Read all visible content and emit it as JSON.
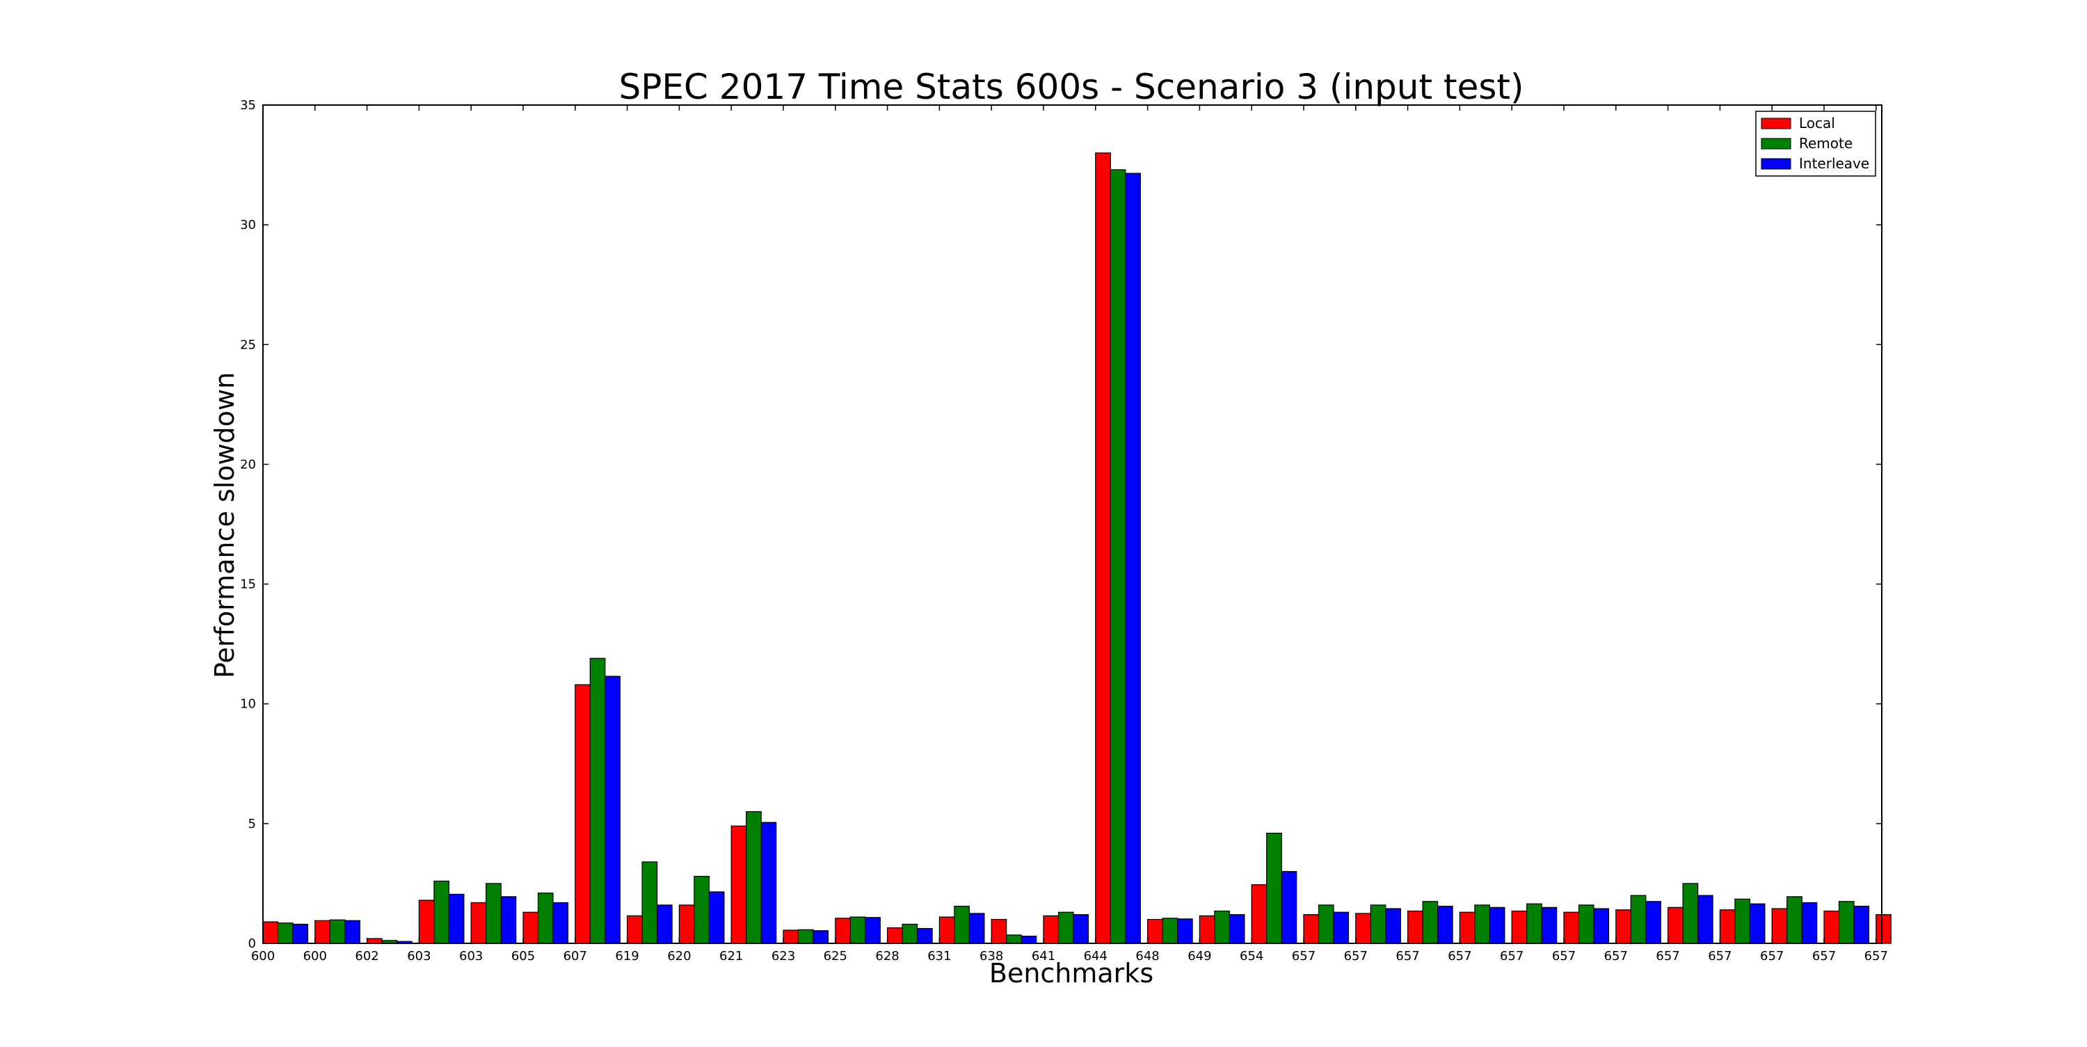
{
  "chart_data": {
    "type": "bar",
    "title": "SPEC 2017 Time Stats 600s - Scenario 3 (input test)",
    "xlabel": "Benchmarks",
    "ylabel": "Performance slowdown",
    "ylim": [
      0,
      35
    ],
    "yticks": [
      0,
      5,
      10,
      15,
      20,
      25,
      30,
      35
    ],
    "grid": false,
    "legend_position": "top-right",
    "categories": [
      "600",
      "600",
      "602",
      "603",
      "603",
      "605",
      "607",
      "619",
      "620",
      "621",
      "623",
      "625",
      "628",
      "631",
      "638",
      "641",
      "644",
      "648",
      "649",
      "654",
      "657",
      "657",
      "657",
      "657",
      "657",
      "657",
      "657",
      "657",
      "657",
      "657",
      "657",
      "657"
    ],
    "series": [
      {
        "name": "Local",
        "color": "#ff0000",
        "values": [
          0.9,
          0.95,
          0.2,
          1.8,
          1.7,
          1.3,
          10.8,
          1.15,
          1.6,
          4.9,
          0.55,
          1.05,
          0.65,
          1.1,
          1.0,
          1.15,
          33.0,
          1.0,
          1.15,
          2.45,
          1.2,
          1.25,
          1.35,
          1.3,
          1.35,
          1.3,
          1.4,
          1.5,
          1.4,
          1.45,
          1.35,
          1.2
        ]
      },
      {
        "name": "Remote",
        "color": "#008000",
        "values": [
          0.85,
          0.98,
          0.12,
          2.6,
          2.5,
          2.1,
          11.9,
          3.4,
          2.8,
          5.5,
          0.57,
          1.1,
          0.8,
          1.55,
          0.35,
          1.3,
          32.3,
          1.05,
          1.35,
          4.6,
          1.6,
          1.6,
          1.75,
          1.6,
          1.65,
          1.6,
          2.0,
          2.5,
          1.85,
          1.95,
          1.75,
          null
        ]
      },
      {
        "name": "Interleave",
        "color": "#0000ff",
        "values": [
          0.8,
          0.95,
          0.08,
          2.05,
          1.95,
          1.7,
          11.15,
          1.6,
          2.15,
          5.05,
          0.53,
          1.08,
          0.62,
          1.25,
          0.3,
          1.2,
          32.15,
          1.02,
          1.2,
          3.0,
          1.3,
          1.45,
          1.55,
          1.5,
          1.5,
          1.45,
          1.75,
          2.0,
          1.65,
          1.7,
          1.55,
          null
        ]
      }
    ]
  }
}
